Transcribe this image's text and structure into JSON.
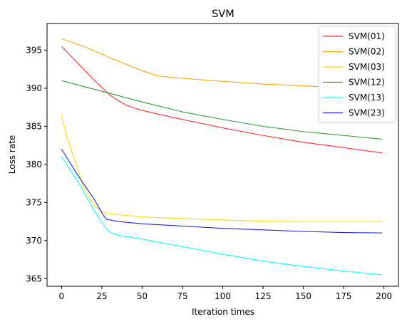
{
  "chart_data": {
    "type": "line",
    "title": "SVM",
    "xlabel": "Iteration times",
    "ylabel": "Loss rate",
    "xlim": [
      -9,
      209
    ],
    "ylim": [
      364,
      398.5
    ],
    "xticks": [
      0,
      25,
      50,
      75,
      100,
      125,
      150,
      175,
      200
    ],
    "yticks": [
      365,
      370,
      375,
      380,
      385,
      390,
      395
    ],
    "grid": false,
    "legend": "top-right",
    "series": [
      {
        "name": "SVM(01)",
        "color": "#ff2a2a",
        "points": [
          [
            0,
            395.5
          ],
          [
            10,
            393.3
          ],
          [
            20,
            391.1
          ],
          [
            30,
            389.1
          ],
          [
            35,
            388.4
          ],
          [
            40,
            387.8
          ],
          [
            45,
            387.4
          ],
          [
            50,
            387.1
          ],
          [
            60,
            386.6
          ],
          [
            75,
            385.9
          ],
          [
            100,
            384.8
          ],
          [
            125,
            383.8
          ],
          [
            150,
            382.9
          ],
          [
            175,
            382.2
          ],
          [
            199,
            381.5
          ]
        ]
      },
      {
        "name": "SVM(02)",
        "color": "#ffa500",
        "points": [
          [
            0,
            396.5
          ],
          [
            15,
            395.4
          ],
          [
            30,
            394.0
          ],
          [
            50,
            392.3
          ],
          [
            60,
            391.6
          ],
          [
            75,
            391.3
          ],
          [
            100,
            390.9
          ],
          [
            125,
            390.55
          ],
          [
            150,
            390.3
          ],
          [
            170,
            390.1
          ]
        ]
      },
      {
        "name": "SVM(03)",
        "color": "#ffd700",
        "points": [
          [
            0,
            386.5
          ],
          [
            3,
            383.8
          ],
          [
            8,
            380.7
          ],
          [
            14,
            376.8
          ],
          [
            20,
            374.7
          ],
          [
            25,
            373.8
          ],
          [
            28,
            373.55
          ],
          [
            40,
            373.3
          ],
          [
            50,
            373.1
          ],
          [
            75,
            372.9
          ],
          [
            100,
            372.7
          ],
          [
            125,
            372.55
          ],
          [
            150,
            372.5
          ],
          [
            175,
            372.5
          ],
          [
            199,
            372.5
          ]
        ]
      },
      {
        "name": "SVM(12)",
        "color": "#2ca02c",
        "points": [
          [
            0,
            391.0
          ],
          [
            25,
            389.6
          ],
          [
            50,
            388.2
          ],
          [
            75,
            386.9
          ],
          [
            100,
            385.9
          ],
          [
            125,
            385.0
          ],
          [
            150,
            384.3
          ],
          [
            175,
            383.8
          ],
          [
            199,
            383.3
          ]
        ]
      },
      {
        "name": "SVM(13)",
        "color": "#00ffff",
        "points": [
          [
            0,
            381.0
          ],
          [
            10,
            377.8
          ],
          [
            20,
            374.0
          ],
          [
            27,
            371.8
          ],
          [
            30,
            371.1
          ],
          [
            35,
            370.7
          ],
          [
            50,
            370.2
          ],
          [
            75,
            369.2
          ],
          [
            100,
            368.2
          ],
          [
            125,
            367.3
          ],
          [
            150,
            366.6
          ],
          [
            175,
            366.0
          ],
          [
            199,
            365.5
          ]
        ]
      },
      {
        "name": "SVM(23)",
        "color": "#2020e0",
        "points": [
          [
            0,
            382.0
          ],
          [
            10,
            378.6
          ],
          [
            20,
            375.5
          ],
          [
            26,
            373.3
          ],
          [
            28,
            372.8
          ],
          [
            35,
            372.5
          ],
          [
            50,
            372.2
          ],
          [
            75,
            371.9
          ],
          [
            100,
            371.6
          ],
          [
            125,
            371.4
          ],
          [
            150,
            371.2
          ],
          [
            175,
            371.05
          ],
          [
            199,
            371.0
          ]
        ]
      }
    ]
  }
}
